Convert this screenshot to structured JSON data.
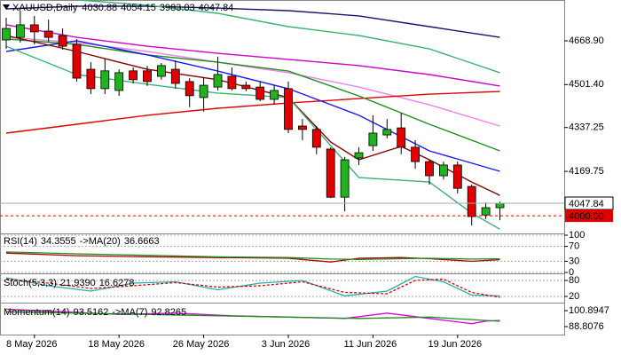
{
  "chart_data": [
    {
      "type": "candlestick",
      "title": "XAUUSD,Daily",
      "categories": [
        null,
        null,
        "8 May 2026",
        null,
        null,
        null,
        null,
        null,
        "18 May 2026",
        null,
        null,
        null,
        null,
        null,
        "26 May 2026",
        null,
        null,
        null,
        null,
        null,
        "3 Jun 2026",
        null,
        null,
        null,
        null,
        null,
        "11 Jun 2026",
        null,
        null,
        null,
        null,
        null,
        "19 Jun 2026",
        null,
        null,
        null
      ],
      "open": [
        4672,
        4682,
        4730,
        4706,
        4689,
        4655,
        4560,
        4486,
        4479,
        4554,
        4554,
        4533,
        4560,
        4513,
        4452,
        4492,
        4533,
        4499,
        4492,
        4445,
        4486,
        4343,
        4330,
        4255,
        4071,
        4221,
        4268,
        4309,
        4336,
        4262,
        4207,
        4153,
        4194,
        4112,
        4003,
        4030.88
      ],
      "high": [
        4757,
        4784,
        4764,
        4750,
        4716,
        4675,
        4587,
        4600,
        4560,
        4567,
        4573,
        4584,
        4594,
        4526,
        4530,
        4608,
        4567,
        4513,
        4513,
        4499,
        4513,
        4370,
        4343,
        4262,
        4225,
        4262,
        4384,
        4370,
        4392,
        4289,
        4214,
        4207,
        4207,
        4119,
        4051,
        4054.15
      ],
      "low": [
        4638,
        4662,
        4655,
        4665,
        4635,
        4513,
        4465,
        4465,
        4458,
        4506,
        4496,
        4520,
        4486,
        4415,
        4398,
        4479,
        4479,
        4476,
        4438,
        4425,
        4316,
        4289,
        4235,
        4068,
        4017,
        4194,
        4248,
        4296,
        4235,
        4180,
        4119,
        4139,
        4085,
        3963,
        3987,
        3983.03
      ],
      "close": [
        4716,
        4730,
        4703,
        4682,
        4648,
        4526,
        4486,
        4554,
        4547,
        4520,
        4513,
        4574,
        4506,
        4459,
        4499,
        4540,
        4486,
        4486,
        4445,
        4479,
        4330,
        4330,
        4262,
        4071,
        4214,
        4241,
        4316,
        4330,
        4262,
        4207,
        4153,
        4194,
        4105,
        3997,
        4031,
        4047.84
      ],
      "up_color": "#1fb41f",
      "down_color": "#e00000",
      "overlays": [
        {
          "color": "#14146e",
          "x": [
            0,
            5,
            10,
            15,
            20,
            25,
            30,
            35
          ],
          "values": [
            4791,
            4801,
            4801,
            4794,
            4784,
            4764,
            4723,
            4682
          ]
        },
        {
          "color": "#cc00cc",
          "x": [
            0,
            5,
            10,
            15,
            20,
            25,
            30,
            35
          ],
          "values": [
            4730,
            4682,
            4648,
            4621,
            4598,
            4574,
            4540,
            4496
          ]
        },
        {
          "color": "#ee82ee",
          "x": [
            0,
            5,
            10,
            15,
            20,
            25,
            30,
            35
          ],
          "values": [
            4682,
            4662,
            4628,
            4587,
            4547,
            4492,
            4424,
            4343
          ]
        },
        {
          "color": "#e00000",
          "x": [
            0,
            5,
            10,
            15,
            20,
            25,
            30,
            35
          ],
          "values": [
            4316,
            4350,
            4384,
            4411,
            4431,
            4448,
            4465,
            4475
          ]
        },
        {
          "color": "#1e8f1e",
          "x": [
            0,
            5,
            10,
            15,
            20,
            25,
            30,
            35
          ],
          "values": [
            4676,
            4655,
            4615,
            4587,
            4553,
            4458,
            4350,
            4248
          ]
        },
        {
          "color": "#1a1aee",
          "x": [
            0,
            5,
            10,
            15,
            20,
            25,
            30,
            35
          ],
          "values": [
            4628,
            4669,
            4615,
            4553,
            4486,
            4384,
            4248,
            4170
          ]
        },
        {
          "color": "#8b0000",
          "x": [
            0,
            5,
            10,
            15,
            20,
            23,
            25,
            28,
            30,
            33,
            35
          ],
          "values": [
            4689,
            4628,
            4560,
            4520,
            4452,
            4282,
            4214,
            4265,
            4214,
            4129,
            4078
          ]
        },
        {
          "color": "#3cb371",
          "x": [
            0,
            5,
            10,
            15,
            20,
            25,
            30,
            33,
            35
          ],
          "values": [
            4648,
            4540,
            4503,
            4469,
            4452,
            4146,
            4129,
            4010,
            3949
          ]
        },
        {
          "color": "#3cb371",
          "x": [
            5,
            10,
            15,
            20,
            25,
            30,
            35
          ],
          "values": [
            4825,
            4805,
            4774,
            4723,
            4689,
            4638,
            4547
          ]
        }
      ],
      "level": {
        "value": 4000,
        "label": "4000.00"
      },
      "ylim": [
        3936,
        4818
      ],
      "yticks": [
        {
          "value": 4668.9,
          "label": "4668.90"
        },
        {
          "value": 4501.4,
          "label": "4501.40"
        },
        {
          "value": 4337.25,
          "label": "4337.25"
        },
        {
          "value": 4169.75,
          "label": "4169.75"
        }
      ],
      "grid": false
    },
    {
      "type": "line",
      "ylim": [
        0,
        100
      ],
      "yticks": [
        0,
        30,
        70,
        100
      ],
      "grid": true,
      "series": [
        {
          "name": "RSI(14)",
          "color": "#b00000",
          "x": [
            0,
            5,
            10,
            15,
            20,
            23,
            25,
            28,
            30,
            33,
            35
          ],
          "values": [
            52,
            45,
            42,
            40,
            38,
            28,
            38,
            40,
            37,
            30,
            34.3555
          ]
        },
        {
          "name": "->MA(20)",
          "color": "#1e8f1e",
          "x": [
            0,
            5,
            10,
            15,
            20,
            23,
            25,
            28,
            30,
            33,
            35
          ],
          "values": [
            55,
            50,
            46,
            42,
            40,
            36,
            35,
            37,
            38,
            36,
            36.6663
          ]
        }
      ]
    },
    {
      "type": "line",
      "ylim": [
        0,
        100
      ],
      "yticks": [
        20,
        80
      ],
      "grid": true,
      "series": [
        {
          "name": "Stoch(5,3,3)",
          "color": "#20b2aa",
          "x": [
            0,
            3,
            6,
            9,
            12,
            15,
            18,
            21,
            24,
            27,
            29,
            31,
            33,
            35
          ],
          "values": [
            90,
            60,
            40,
            70,
            75,
            45,
            70,
            80,
            22,
            40,
            95,
            75,
            25,
            21.939
          ],
          "value_labels": [
            null,
            null,
            null,
            null,
            null,
            null,
            null,
            null,
            null,
            null,
            null,
            null,
            null,
            "21.9390"
          ]
        },
        {
          "color": "#e00000",
          "dashed": true,
          "x": [
            0,
            3,
            6,
            9,
            12,
            15,
            18,
            21,
            24,
            27,
            29,
            31,
            33,
            35
          ],
          "values": [
            85,
            70,
            50,
            60,
            72,
            55,
            60,
            75,
            35,
            30,
            80,
            85,
            35,
            16.6278
          ]
        }
      ]
    },
    {
      "type": "line",
      "ylim": [
        82.76,
        105.6
      ],
      "yticks": [
        88.8076,
        100.8947
      ],
      "grid": false,
      "series": [
        {
          "name": "Momentum(14)",
          "color": "#dd00dd",
          "x": [
            0,
            4,
            8,
            12,
            16,
            20,
            24,
            27,
            30,
            33,
            34,
            35
          ],
          "values": [
            102,
            100,
            98,
            99,
            97,
            96,
            95,
            99,
            95,
            91,
            93,
            93.5162
          ]
        },
        {
          "name": "->MA(7)",
          "color": "#1e8f1e",
          "x": [
            0,
            5,
            10,
            15,
            20,
            25,
            30,
            35
          ],
          "values": [
            100,
            99,
            98,
            97,
            96,
            95,
            96,
            92.8265
          ]
        }
      ]
    }
  ]
}
